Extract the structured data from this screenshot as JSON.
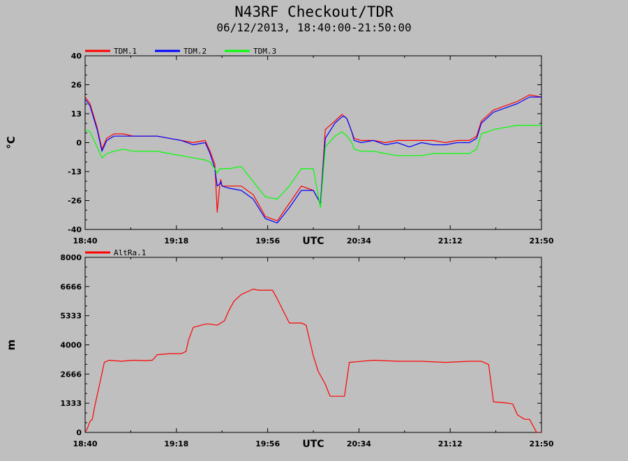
{
  "title": "N43RF Checkout/TDR",
  "subtitle": "06/12/2013, 18:40:00-21:50:00",
  "chart_data": [
    {
      "type": "line",
      "ylabel": "°C",
      "xlabel": "UTC",
      "ylim": [
        -40,
        40
      ],
      "yticks": [
        "40",
        "26",
        "13",
        "0",
        "-13",
        "-26",
        "-40"
      ],
      "xlim_minutes": [
        0,
        190
      ],
      "xticks": [
        "18:40",
        "19:18",
        "19:56",
        "20:34",
        "21:12",
        "21:50"
      ],
      "legend_position": "top-left",
      "series": [
        {
          "name": "TDM.1",
          "color": "#ff0000",
          "x": [
            0,
            2,
            5,
            7,
            9,
            12,
            16,
            20,
            25,
            30,
            35,
            40,
            45,
            50,
            52,
            54,
            55,
            56,
            56.5,
            57,
            60,
            65,
            70,
            75,
            80,
            85,
            90,
            95,
            98,
            100,
            104,
            107,
            108,
            109,
            111,
            112,
            115,
            120,
            125,
            130,
            135,
            140,
            145,
            150,
            155,
            160,
            163,
            165,
            170,
            175,
            180,
            185,
            190
          ],
          "y": [
            21,
            18,
            7,
            -3,
            2,
            4,
            4,
            3,
            3,
            3,
            2,
            1,
            0,
            1,
            -4,
            -10,
            -32,
            -20,
            -17,
            -20,
            -20,
            -20,
            -24,
            -34,
            -36,
            -28,
            -20,
            -22,
            -28,
            6,
            10,
            13,
            12,
            11,
            5,
            2,
            1,
            1,
            0,
            1,
            1,
            1,
            1,
            0,
            1,
            1,
            3,
            10,
            15,
            17,
            19,
            22,
            21
          ]
        },
        {
          "name": "TDM.2",
          "color": "#0000ff",
          "x": [
            0,
            2,
            5,
            7,
            9,
            12,
            16,
            20,
            25,
            30,
            35,
            40,
            45,
            50,
            52,
            54,
            55,
            56,
            56.5,
            57,
            60,
            65,
            70,
            75,
            80,
            85,
            90,
            95,
            98,
            100,
            104,
            107,
            108,
            109,
            111,
            112,
            115,
            120,
            125,
            130,
            135,
            140,
            145,
            150,
            155,
            160,
            163,
            165,
            170,
            175,
            180,
            185,
            190
          ],
          "y": [
            20,
            17,
            6,
            -4,
            1,
            3,
            3,
            3,
            3,
            3,
            2,
            1,
            -1,
            0,
            -5,
            -12,
            -20,
            -19,
            -18,
            -20,
            -21,
            -22,
            -26,
            -35,
            -37,
            -30,
            -22,
            -22,
            -28,
            2,
            9,
            12,
            12,
            11,
            5,
            1,
            0,
            1,
            -1,
            0,
            -2,
            0,
            -1,
            -1,
            0,
            0,
            2,
            9,
            14,
            16,
            18,
            21,
            21
          ]
        },
        {
          "name": "TDM.3",
          "color": "#00ff00",
          "x": [
            0,
            2,
            5,
            7,
            9,
            12,
            16,
            20,
            25,
            30,
            35,
            40,
            45,
            50,
            52,
            54,
            55,
            56,
            57,
            60,
            65,
            70,
            75,
            80,
            85,
            90,
            95,
            98,
            100,
            104,
            107,
            108,
            109,
            111,
            112,
            115,
            120,
            125,
            130,
            135,
            140,
            145,
            150,
            155,
            160,
            163,
            165,
            170,
            175,
            180,
            185,
            190
          ],
          "y": [
            6,
            5,
            -2,
            -7,
            -5,
            -4,
            -3,
            -4,
            -4,
            -4,
            -5,
            -6,
            -7,
            -8,
            -9,
            -12,
            -14,
            -12,
            -12,
            -12,
            -11,
            -18,
            -25,
            -26,
            -20,
            -12,
            -12,
            -30,
            -2,
            3,
            5,
            4,
            3,
            0,
            -3,
            -4,
            -4,
            -5,
            -6,
            -6,
            -6,
            -5,
            -5,
            -5,
            -5,
            -3,
            4,
            6,
            7,
            8,
            8,
            8
          ]
        }
      ]
    },
    {
      "type": "line",
      "ylabel": "m",
      "xlabel": "UTC",
      "ylim": [
        0,
        8000
      ],
      "yticks": [
        "8000",
        "6666",
        "5333",
        "4000",
        "2666",
        "1333",
        "0"
      ],
      "xlim_minutes": [
        0,
        190
      ],
      "xticks": [
        "18:40",
        "19:18",
        "19:56",
        "20:34",
        "21:12",
        "21:50"
      ],
      "legend_position": "top-left",
      "series": [
        {
          "name": "AltRa.1",
          "color": "#ff0000",
          "x": [
            0,
            1,
            2,
            3,
            4,
            6,
            8,
            10,
            15,
            20,
            25,
            28,
            30,
            35,
            40,
            42,
            43,
            45,
            50,
            52,
            55,
            58,
            60,
            62,
            65,
            70,
            72,
            75,
            78,
            80,
            85,
            88,
            90,
            92,
            95,
            97,
            100,
            102,
            108,
            110,
            120,
            130,
            140,
            150,
            160,
            165,
            166,
            168,
            170,
            175,
            178,
            180,
            183,
            185,
            188,
            190
          ],
          "y": [
            0,
            200,
            500,
            600,
            1200,
            2200,
            3200,
            3300,
            3250,
            3300,
            3280,
            3300,
            3550,
            3600,
            3600,
            3700,
            4200,
            4800,
            4950,
            4950,
            4900,
            5100,
            5600,
            6000,
            6300,
            6550,
            6500,
            6500,
            6500,
            6100,
            5000,
            5000,
            5000,
            4900,
            3500,
            2800,
            2200,
            1650,
            1650,
            3200,
            3300,
            3250,
            3250,
            3200,
            3250,
            3250,
            3200,
            3100,
            1400,
            1350,
            1300,
            800,
            600,
            600,
            0,
            0
          ]
        }
      ]
    }
  ]
}
